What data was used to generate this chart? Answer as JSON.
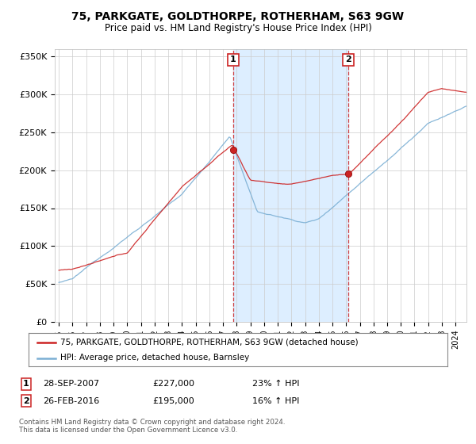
{
  "title": "75, PARKGATE, GOLDTHORPE, ROTHERHAM, S63 9GW",
  "subtitle": "Price paid vs. HM Land Registry's House Price Index (HPI)",
  "ylabel_ticks": [
    "£0",
    "£50K",
    "£100K",
    "£150K",
    "£200K",
    "£250K",
    "£300K",
    "£350K"
  ],
  "ytick_values": [
    0,
    50000,
    100000,
    150000,
    200000,
    250000,
    300000,
    350000
  ],
  "ylim": [
    0,
    360000
  ],
  "xlim_left": 1994.7,
  "xlim_right": 2024.8,
  "hpi_color": "#7bafd4",
  "price_color": "#cc2222",
  "shade_color": "#ddeeff",
  "marker1_x": 2007.75,
  "marker1_y": 227000,
  "marker2_x": 2016.15,
  "marker2_y": 195000,
  "legend_label1": "75, PARKGATE, GOLDTHORPE, ROTHERHAM, S63 9GW (detached house)",
  "legend_label2": "HPI: Average price, detached house, Barnsley",
  "annotation1_date": "28-SEP-2007",
  "annotation1_price": "£227,000",
  "annotation1_hpi": "23% ↑ HPI",
  "annotation2_date": "26-FEB-2016",
  "annotation2_price": "£195,000",
  "annotation2_hpi": "16% ↑ HPI",
  "footer": "Contains HM Land Registry data © Crown copyright and database right 2024.\nThis data is licensed under the Open Government Licence v3.0.",
  "background_color": "#ffffff",
  "grid_color": "#cccccc"
}
